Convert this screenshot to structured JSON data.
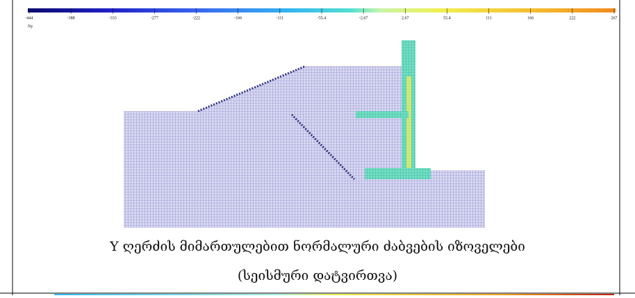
{
  "colorbar": {
    "ticks": [
      "-444",
      "-388",
      "-333",
      "-277",
      "-222",
      "-166",
      "-111",
      "-55.4",
      "-2.67",
      "2.67",
      "55.4",
      "111",
      "166",
      "222",
      "267"
    ],
    "label": "Ny"
  },
  "caption": {
    "line1": "Y ღერძის მიმართულებით ნორმალური ძაბვების იზოველები",
    "line2": "(სეისმური დატვირთვა)"
  }
}
